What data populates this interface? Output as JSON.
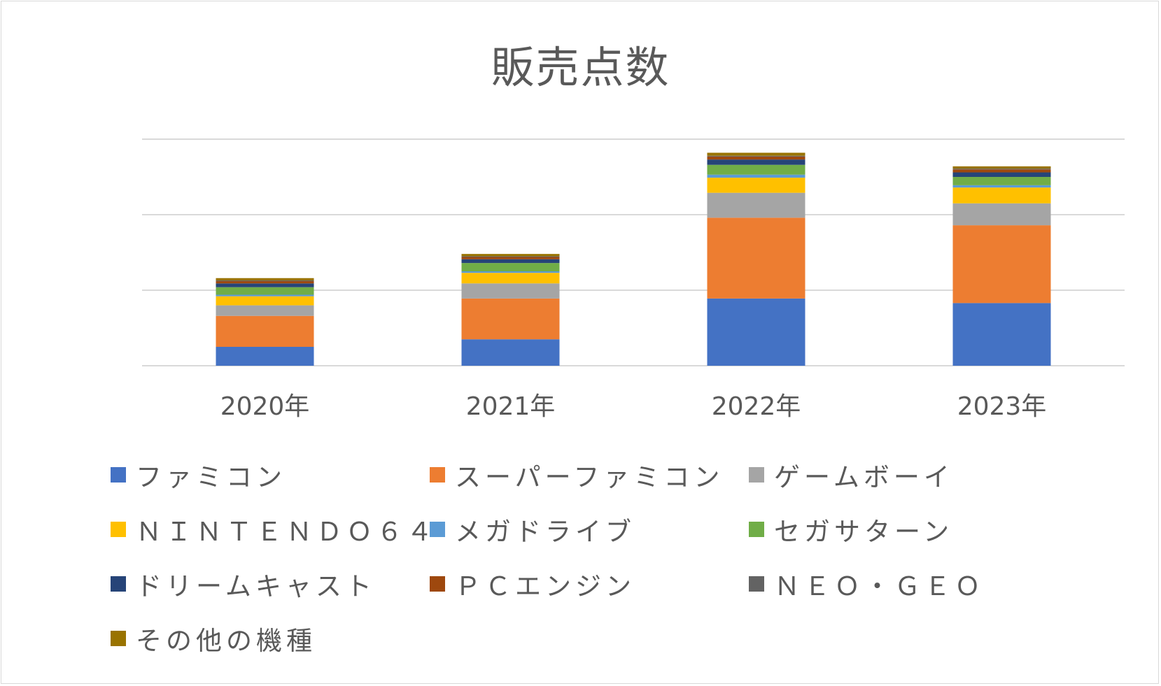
{
  "chart_data": {
    "type": "bar",
    "stacked": true,
    "title": "販売点数",
    "categories": [
      "2020年",
      "2021年",
      "2022年",
      "2023年"
    ],
    "ylim": [
      0,
      300
    ],
    "grid": true,
    "legend_position": "bottom",
    "series": [
      {
        "name": "ファミコン",
        "color": "#4472c4",
        "values": [
          25,
          35,
          89,
          83
        ]
      },
      {
        "name": "スーパーファミコン",
        "color": "#ed7d31",
        "values": [
          41,
          54,
          107,
          103
        ]
      },
      {
        "name": "ゲームボーイ",
        "color": "#a5a5a5",
        "values": [
          14,
          20,
          33,
          29
        ]
      },
      {
        "name": "NINTENDO64",
        "color": "#ffc000",
        "values": [
          12,
          14,
          20,
          21
        ]
      },
      {
        "name": "メガドライブ",
        "color": "#5b9bd5",
        "values": [
          2,
          2,
          4,
          3
        ]
      },
      {
        "name": "セガサターン",
        "color": "#70ad47",
        "values": [
          10,
          11,
          13,
          11
        ]
      },
      {
        "name": "ドリームキャスト",
        "color": "#264478",
        "values": [
          5,
          5,
          7,
          6
        ]
      },
      {
        "name": "PCエンジン",
        "color": "#9e480e",
        "values": [
          3,
          3,
          4,
          4
        ]
      },
      {
        "name": "NEO・GEO",
        "color": "#636363",
        "values": [
          1,
          1,
          1,
          1
        ]
      },
      {
        "name": "その他の機種",
        "color": "#997300",
        "values": [
          3,
          3,
          4,
          3
        ]
      }
    ]
  },
  "legend": {
    "labels": [
      "ファミコン",
      "スーパーファミコン",
      "ゲームボーイ",
      "ＮＩＮＴＥＮＤＯ６４",
      "メガドライブ",
      "セガサターン",
      "ドリームキャスト",
      "ＰＣエンジン",
      "ＮＥＯ・ＧＥＯ",
      "その他の機種"
    ]
  }
}
